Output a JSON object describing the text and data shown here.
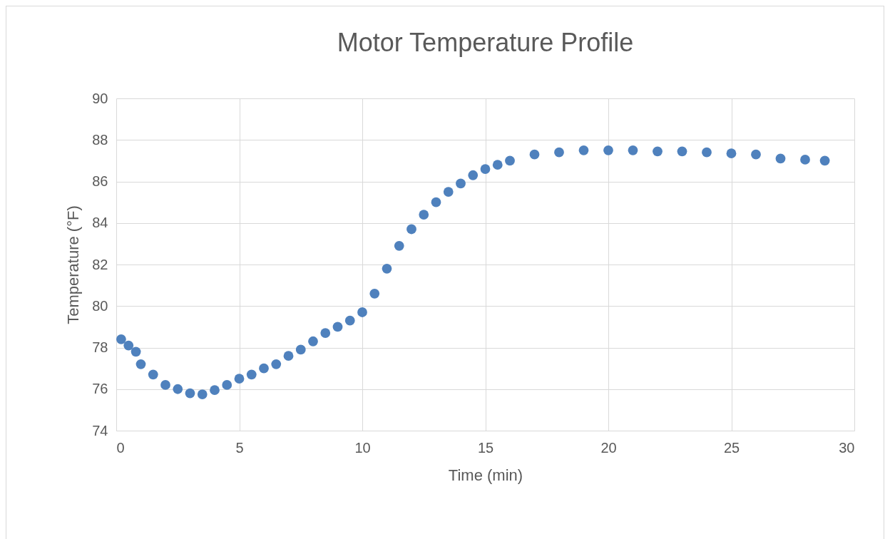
{
  "chart_data": {
    "type": "scatter",
    "title": "Motor Temperature Profile",
    "xlabel": "Time (min)",
    "ylabel": "Temperature (°F)",
    "x": [
      0.2,
      0.5,
      0.8,
      1.0,
      1.5,
      2.0,
      2.5,
      3.0,
      3.5,
      4.0,
      4.5,
      5.0,
      5.5,
      6.0,
      6.5,
      7.0,
      7.5,
      8.0,
      8.5,
      9.0,
      9.5,
      10.0,
      10.5,
      11.0,
      11.5,
      12.0,
      12.5,
      13.0,
      13.5,
      14.0,
      14.5,
      15.0,
      15.5,
      16.0,
      17.0,
      18.0,
      19.0,
      20.0,
      21.0,
      22.0,
      23.0,
      24.0,
      25.0,
      26.0,
      27.0,
      28.0,
      28.8
    ],
    "series": [
      {
        "color": "#4f81bd",
        "values": [
          78.4,
          78.1,
          77.8,
          77.2,
          76.7,
          76.2,
          76.0,
          75.8,
          75.75,
          75.95,
          76.2,
          76.5,
          76.7,
          77.0,
          77.2,
          77.6,
          77.9,
          78.3,
          78.7,
          79.0,
          79.3,
          79.7,
          80.6,
          81.8,
          82.9,
          83.7,
          84.4,
          85.0,
          85.5,
          85.9,
          86.3,
          86.6,
          86.8,
          87.0,
          87.3,
          87.4,
          87.5,
          87.5,
          87.5,
          87.45,
          87.45,
          87.4,
          87.35,
          87.3,
          87.1,
          87.05,
          87.0
        ]
      }
    ],
    "xlim": [
      0,
      30
    ],
    "xticks": [
      0,
      5,
      10,
      15,
      20,
      25,
      30
    ],
    "ylim": [
      74,
      90
    ],
    "yticks": [
      74,
      76,
      78,
      80,
      82,
      84,
      86,
      88,
      90
    ],
    "grid": true,
    "marker": "circle"
  }
}
